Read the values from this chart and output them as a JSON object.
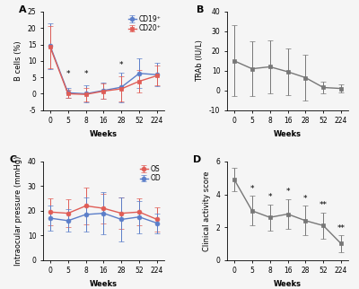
{
  "weeks": [
    0,
    5,
    8,
    16,
    28,
    52,
    224
  ],
  "panel_A": {
    "title": "A",
    "ylabel": "B cells (%)",
    "xlabel": "Weeks",
    "ylim": [
      -5,
      25
    ],
    "yticks": [
      -5,
      0,
      5,
      10,
      15,
      20,
      25
    ],
    "cd19": {
      "mean": [
        14.5,
        0.3,
        0.0,
        1.0,
        2.0,
        6.2,
        5.8
      ],
      "err": [
        7.0,
        1.5,
        2.5,
        2.5,
        4.5,
        4.5,
        3.5
      ],
      "color": "#5b7ec9",
      "label": "CD19⁺"
    },
    "cd20": {
      "mean": [
        14.2,
        0.0,
        -0.2,
        0.8,
        1.5,
        3.8,
        5.5
      ],
      "err": [
        6.5,
        1.2,
        2.0,
        2.2,
        3.8,
        3.5,
        3.0
      ],
      "color": "#e05c55",
      "label": "CD20⁺"
    },
    "asterisks": [
      {
        "week_idx": 1,
        "y": 4.8,
        "text": "*"
      },
      {
        "week_idx": 2,
        "y": 4.8,
        "text": "*"
      },
      {
        "week_idx": 4,
        "y": 7.5,
        "text": "*"
      }
    ]
  },
  "panel_B": {
    "title": "B",
    "ylabel": "TRAb (IU/L)",
    "xlabel": "Weeks",
    "ylim": [
      -10,
      40
    ],
    "yticks": [
      -10,
      0,
      10,
      20,
      30,
      40
    ],
    "mean": [
      15.0,
      11.0,
      12.0,
      9.5,
      6.5,
      1.5,
      1.0
    ],
    "err": [
      18.0,
      14.0,
      13.5,
      12.0,
      11.5,
      3.0,
      2.0
    ],
    "color": "#777777"
  },
  "panel_C": {
    "title": "C",
    "ylabel": "Intraocular pressure (mmHg)",
    "xlabel": "Weeks",
    "ylim": [
      0,
      40
    ],
    "yticks": [
      0,
      10,
      20,
      30,
      40
    ],
    "os": {
      "mean": [
        19.5,
        19.0,
        22.0,
        21.0,
        19.0,
        19.5,
        16.5
      ],
      "err": [
        5.5,
        5.5,
        7.5,
        6.0,
        6.5,
        5.5,
        5.0
      ],
      "color": "#e05c55",
      "label": "OS"
    },
    "od": {
      "mean": [
        17.0,
        16.0,
        18.5,
        19.0,
        16.5,
        17.5,
        15.0
      ],
      "err": [
        5.0,
        4.5,
        7.0,
        8.5,
        9.0,
        6.5,
        4.0
      ],
      "color": "#5b7ec9",
      "label": "OD"
    }
  },
  "panel_D": {
    "title": "D",
    "ylabel": "Clinical activity score",
    "xlabel": "Weeks",
    "ylim": [
      0,
      6
    ],
    "yticks": [
      0,
      2,
      4,
      6
    ],
    "mean": [
      4.9,
      3.0,
      2.6,
      2.8,
      2.4,
      2.1,
      1.0
    ],
    "err": [
      0.7,
      0.9,
      0.8,
      0.9,
      0.9,
      0.8,
      0.5
    ],
    "color": "#777777",
    "asterisks": [
      {
        "week_idx": 1,
        "y": 4.1,
        "text": "*"
      },
      {
        "week_idx": 2,
        "y": 3.6,
        "text": "*"
      },
      {
        "week_idx": 3,
        "y": 3.9,
        "text": "*"
      },
      {
        "week_idx": 4,
        "y": 3.5,
        "text": "*"
      },
      {
        "week_idx": 5,
        "y": 3.1,
        "text": "**"
      },
      {
        "week_idx": 6,
        "y": 1.7,
        "text": "**"
      }
    ]
  },
  "marker_size": 3.5,
  "line_width": 1.0,
  "cap_size": 2,
  "error_line_width": 0.7,
  "font_size_label": 6,
  "font_size_tick": 5.5,
  "font_size_legend": 5.5,
  "font_size_panel": 8,
  "font_size_asterisk": 6.5,
  "bg_color": "#f5f5f5"
}
